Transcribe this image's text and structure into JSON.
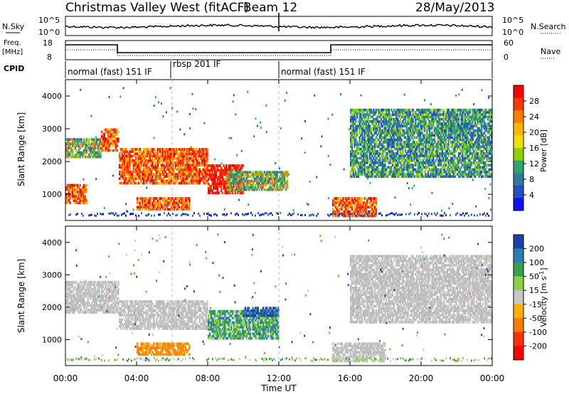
{
  "header": {
    "title": "Christmas Valley West (fitACF)",
    "beam": "Beam 12",
    "date": "28/May/2013"
  },
  "panels": {
    "nsky": {
      "label": "N.Sky",
      "tick_top": "10^5",
      "tick_bottom": "10^0",
      "right_tick_top": "10^5",
      "right_tick_bottom": "10^0",
      "right_label": "N.Search"
    },
    "freq": {
      "label_line1": "Freq.",
      "label_line2": "[MHz]",
      "ticks": [
        "18",
        "8"
      ],
      "right_ticks": [
        "60",
        "0"
      ],
      "right_label": "Nave"
    },
    "cpid": {
      "label": "CPID",
      "segments": [
        {
          "start": 0,
          "end": 6,
          "text": "normal (fast) 151 IF"
        },
        {
          "start": 6,
          "end": 12,
          "text": "rbsp 201 IF"
        },
        {
          "start": 12,
          "end": 24,
          "text": "normal (fast) 151 IF"
        }
      ]
    }
  },
  "power_colorbar": {
    "label": "Power [dB]",
    "ticks": [
      "28",
      "24",
      "20",
      "16",
      "12",
      "8",
      "4"
    ],
    "colors": [
      "#ff0000",
      "#ff3a00",
      "#ff7a00",
      "#ffb400",
      "#f0e000",
      "#90d000",
      "#2ea66a",
      "#2f7aa0",
      "#2250c0",
      "#1010ff"
    ]
  },
  "velocity_colorbar": {
    "label": "Velocity [m s",
    "label_exp": "-1",
    "label_end": "]",
    "ticks": [
      "200",
      "100",
      "50",
      "15",
      "-15",
      "-50",
      "-100",
      "-200"
    ],
    "colors": [
      "#1f3fa8",
      "#2e7db0",
      "#3aa050",
      "#8ad040",
      "#c8c8c8",
      "#ffb000",
      "#ff7a00",
      "#ff3000",
      "#ff0000"
    ]
  },
  "chart_data": [
    {
      "type": "heatmap",
      "name": "power",
      "xlabel": "Time UT",
      "ylabel": "Slant Range [km]",
      "xlim": [
        0,
        24
      ],
      "ylim": [
        200,
        4500
      ],
      "x_ticks": [
        "00:00",
        "04:00",
        "08:00",
        "12:00",
        "16:00",
        "20:00",
        "00:00"
      ],
      "y_ticks": [
        "1000",
        "2000",
        "3000",
        "4000"
      ],
      "features": [
        {
          "t0": 0.0,
          "t1": 1.2,
          "r0": 700,
          "r1": 1300,
          "level": "high"
        },
        {
          "t0": 0.0,
          "t1": 2.0,
          "r0": 2100,
          "r1": 2700,
          "level": "mid"
        },
        {
          "t0": 2.0,
          "t1": 3.0,
          "r0": 2300,
          "r1": 3000,
          "level": "high"
        },
        {
          "t0": 3.0,
          "t1": 8.0,
          "r0": 1300,
          "r1": 2400,
          "level": "high"
        },
        {
          "t0": 4.0,
          "t1": 7.0,
          "r0": 500,
          "r1": 900,
          "level": "high"
        },
        {
          "t0": 8.0,
          "t1": 10.0,
          "r0": 1000,
          "r1": 1900,
          "level": "very-high"
        },
        {
          "t0": 9.0,
          "t1": 12.5,
          "r0": 1100,
          "r1": 1700,
          "level": "mid"
        },
        {
          "t0": 15.0,
          "t1": 17.5,
          "r0": 300,
          "r1": 900,
          "level": "high"
        },
        {
          "t0": 16.0,
          "t1": 24.0,
          "r0": 1500,
          "r1": 3600,
          "level": "low"
        }
      ]
    },
    {
      "type": "heatmap",
      "name": "velocity",
      "xlabel": "Time UT",
      "ylabel": "Slant Range [km]",
      "xlim": [
        0,
        24
      ],
      "ylim": [
        200,
        4500
      ],
      "x_ticks": [
        "00:00",
        "04:00",
        "08:00",
        "12:00",
        "16:00",
        "20:00",
        "00:00"
      ],
      "y_ticks": [
        "1000",
        "2000",
        "3000",
        "4000"
      ],
      "features": [
        {
          "t0": 0.0,
          "t1": 3.0,
          "r0": 1800,
          "r1": 2800,
          "level": "ground"
        },
        {
          "t0": 3.0,
          "t1": 8.0,
          "r0": 1300,
          "r1": 2200,
          "level": "ground"
        },
        {
          "t0": 4.0,
          "t1": 7.0,
          "r0": 500,
          "r1": 900,
          "level": "negative"
        },
        {
          "t0": 8.0,
          "t1": 12.0,
          "r0": 1000,
          "r1": 1900,
          "level": "positive"
        },
        {
          "t0": 10.0,
          "t1": 12.0,
          "r0": 1700,
          "r1": 2000,
          "level": "high-positive"
        },
        {
          "t0": 15.0,
          "t1": 18.0,
          "r0": 300,
          "r1": 900,
          "level": "ground"
        },
        {
          "t0": 16.0,
          "t1": 24.0,
          "r0": 1500,
          "r1": 3600,
          "level": "ground"
        }
      ]
    }
  ]
}
